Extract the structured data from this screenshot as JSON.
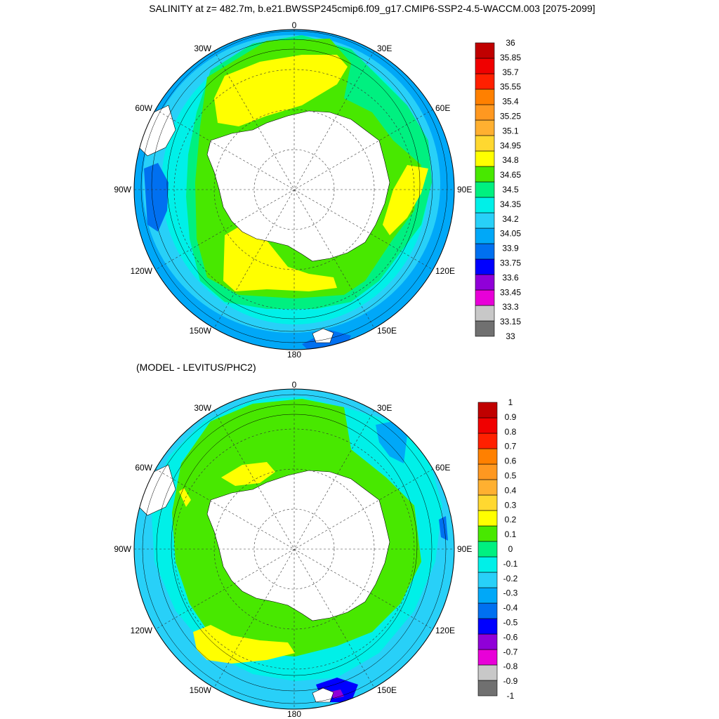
{
  "title": "SALINITY at z= 482.7m, b.e21.BWSSP245cmip6.f09_g17.CMIP6-SSP2-4.5-WACCM.003 [2075-2099]",
  "subtitle": "(MODEL - LEVITUS/PHC2)",
  "lon_labels": [
    "0",
    "30E",
    "60E",
    "90E",
    "120E",
    "150E",
    "180",
    "150W",
    "120W",
    "90W",
    "60W",
    "30W"
  ],
  "colorbar_colors": [
    "#707070",
    "#c8c8c8",
    "#e800d8",
    "#9000d8",
    "#0000ff",
    "#0070f0",
    "#00a8f8",
    "#28d0f8",
    "#00f0e8",
    "#00f080",
    "#48e800",
    "#ffff00",
    "#ffd830",
    "#ffb030",
    "#ff9820",
    "#ff8000",
    "#ff2000",
    "#f00000",
    "#c00000"
  ],
  "legend_top": [
    "36",
    "35.85",
    "35.7",
    "35.55",
    "35.4",
    "35.25",
    "35.1",
    "34.95",
    "34.8",
    "34.65",
    "34.5",
    "34.35",
    "34.2",
    "34.05",
    "33.9",
    "33.75",
    "33.6",
    "33.45",
    "33.3",
    "33.15",
    "33"
  ],
  "legend_bottom": [
    "1",
    "0.9",
    "0.8",
    "0.7",
    "0.6",
    "0.5",
    "0.4",
    "0.3",
    "0.2",
    "0.1",
    "0",
    "-0.1",
    "-0.2",
    "-0.3",
    "-0.4",
    "-0.5",
    "-0.6",
    "-0.7",
    "-0.8",
    "-0.9",
    "-1"
  ]
}
